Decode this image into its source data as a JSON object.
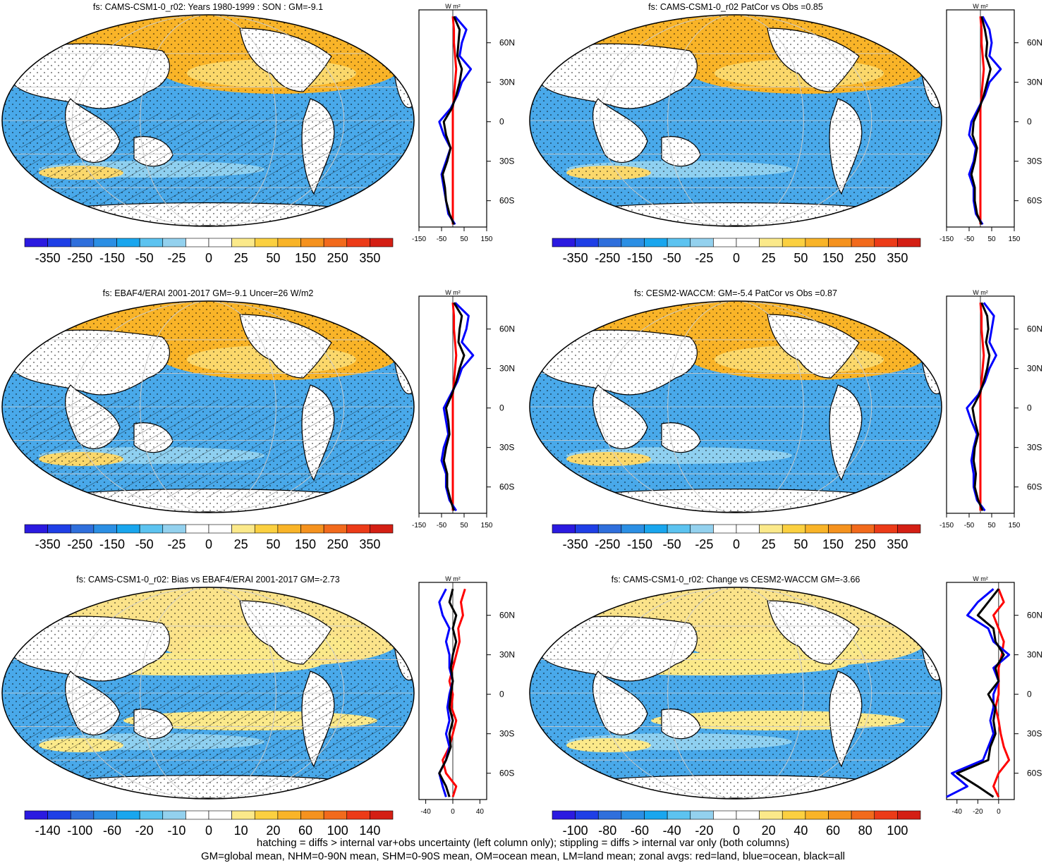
{
  "chart_data": [
    {
      "type": "heatmap",
      "title": "fs: CAMS-CSM1-0_r02: Years 1980-1999 : SON : GM=-9.1",
      "colorbar_labels": [
        "-350",
        "-250",
        "-150",
        "-50",
        "-25",
        "0",
        "25",
        "50",
        "150",
        "250",
        "350"
      ],
      "zonal_profile": {
        "unit": "W m²",
        "y_tick_labels": [
          "60N",
          "30N",
          "0",
          "30S",
          "60S"
        ],
        "y_ticks": [
          60,
          30,
          0,
          -30,
          -60
        ],
        "x_tick_labels": [
          "-150",
          "-50",
          "50",
          "150"
        ],
        "x_ticks": [
          -150,
          -50,
          50,
          150
        ],
        "xlim": [
          -150,
          150
        ],
        "ylim": [
          -80,
          85
        ],
        "lat": [
          80,
          70,
          60,
          50,
          40,
          30,
          20,
          10,
          0,
          -10,
          -20,
          -30,
          -40,
          -50,
          -60,
          -70,
          -78
        ],
        "series": [
          {
            "name": "land",
            "color": "#ff0000",
            "values": [
              0,
              5,
              5,
              10,
              15,
              10,
              5,
              0,
              0,
              0,
              0,
              0,
              0,
              0,
              0,
              0,
              0
            ]
          },
          {
            "name": "ocean",
            "color": "#0000ff",
            "values": [
              10,
              60,
              40,
              30,
              80,
              40,
              20,
              -10,
              -60,
              -40,
              -10,
              -30,
              -50,
              -40,
              -30,
              -20,
              10
            ]
          },
          {
            "name": "all",
            "color": "#000000",
            "values": [
              5,
              30,
              25,
              20,
              40,
              30,
              15,
              -5,
              -40,
              -30,
              -10,
              -25,
              -45,
              -35,
              -30,
              -15,
              5
            ]
          }
        ]
      }
    },
    {
      "type": "heatmap",
      "title": "fs: CAMS-CSM1-0_r02 PatCor vs Obs =0.85",
      "colorbar_labels": [
        "-350",
        "-250",
        "-150",
        "-50",
        "-25",
        "0",
        "25",
        "50",
        "150",
        "250",
        "350"
      ],
      "zonal_profile": {
        "unit": "W m²",
        "y_tick_labels": [
          "60N",
          "30N",
          "0",
          "30S",
          "60S"
        ],
        "y_ticks": [
          60,
          30,
          0,
          -30,
          -60
        ],
        "x_tick_labels": [
          "-150",
          "-50",
          "50",
          "150"
        ],
        "x_ticks": [
          -150,
          -50,
          50,
          150
        ],
        "xlim": [
          -150,
          150
        ],
        "ylim": [
          -80,
          85
        ],
        "lat": [
          80,
          70,
          60,
          50,
          40,
          30,
          20,
          10,
          0,
          -10,
          -20,
          -30,
          -40,
          -50,
          -60,
          -70,
          -78
        ],
        "series": [
          {
            "name": "land",
            "color": "#ff0000",
            "values": [
              0,
              5,
              5,
              10,
              15,
              10,
              5,
              0,
              0,
              0,
              0,
              0,
              0,
              0,
              0,
              0,
              0
            ]
          },
          {
            "name": "ocean",
            "color": "#0000ff",
            "values": [
              10,
              40,
              50,
              40,
              90,
              40,
              20,
              -10,
              -40,
              -50,
              -20,
              -30,
              -50,
              -30,
              -30,
              -20,
              10
            ]
          },
          {
            "name": "all",
            "color": "#000000",
            "values": [
              5,
              20,
              30,
              25,
              45,
              30,
              15,
              -5,
              -30,
              -35,
              -15,
              -25,
              -40,
              -25,
              -25,
              -15,
              5
            ]
          }
        ]
      }
    },
    {
      "type": "heatmap",
      "title": "fs: EBAF4/ERAI 2001-2017 GM=-9.1 Uncer=26 W/m2",
      "colorbar_labels": [
        "-350",
        "-250",
        "-150",
        "-50",
        "-25",
        "0",
        "25",
        "50",
        "150",
        "250",
        "350"
      ],
      "zonal_profile": {
        "unit": "W m²",
        "y_tick_labels": [
          "60N",
          "30N",
          "0",
          "30S",
          "60S"
        ],
        "y_ticks": [
          60,
          30,
          0,
          -30,
          -60
        ],
        "x_tick_labels": [
          "-150",
          "-50",
          "50",
          "150"
        ],
        "x_ticks": [
          -150,
          -50,
          50,
          150
        ],
        "xlim": [
          -150,
          150
        ],
        "ylim": [
          -80,
          85
        ],
        "lat": [
          80,
          70,
          60,
          50,
          40,
          30,
          20,
          10,
          0,
          -10,
          -20,
          -30,
          -40,
          -50,
          -60,
          -70,
          -78
        ],
        "series": [
          {
            "name": "land",
            "color": "#ff0000",
            "values": [
              0,
              5,
              5,
              10,
              15,
              10,
              5,
              0,
              0,
              0,
              0,
              0,
              0,
              0,
              0,
              0,
              0
            ]
          },
          {
            "name": "ocean",
            "color": "#0000ff",
            "values": [
              10,
              70,
              60,
              40,
              90,
              40,
              20,
              -10,
              -40,
              -30,
              -20,
              -40,
              -50,
              -30,
              -30,
              -15,
              15
            ]
          },
          {
            "name": "all",
            "color": "#000000",
            "values": [
              5,
              40,
              30,
              25,
              50,
              30,
              15,
              -5,
              -30,
              -20,
              -15,
              -30,
              -40,
              -25,
              -25,
              -10,
              5
            ]
          }
        ]
      }
    },
    {
      "type": "heatmap",
      "title": "fs: CESM2-WACCM: GM=-5.4 PatCor vs Obs =0.87",
      "colorbar_labels": [
        "-350",
        "-250",
        "-150",
        "-50",
        "-25",
        "0",
        "25",
        "50",
        "150",
        "250",
        "350"
      ],
      "zonal_profile": {
        "unit": "W m²",
        "y_tick_labels": [
          "60N",
          "30N",
          "0",
          "30S",
          "60S"
        ],
        "y_ticks": [
          60,
          30,
          0,
          -30,
          -60
        ],
        "x_tick_labels": [
          "-150",
          "-50",
          "50",
          "150"
        ],
        "x_ticks": [
          -150,
          -50,
          50,
          150
        ],
        "xlim": [
          -150,
          150
        ],
        "ylim": [
          -80,
          85
        ],
        "lat": [
          80,
          70,
          60,
          50,
          40,
          30,
          20,
          10,
          0,
          -10,
          -20,
          -30,
          -40,
          -50,
          -60,
          -70,
          -78
        ],
        "series": [
          {
            "name": "land",
            "color": "#ff0000",
            "values": [
              0,
              5,
              5,
              10,
              15,
              10,
              5,
              0,
              0,
              0,
              0,
              0,
              0,
              0,
              0,
              0,
              0
            ]
          },
          {
            "name": "ocean",
            "color": "#0000ff",
            "values": [
              15,
              60,
              50,
              40,
              70,
              40,
              20,
              -10,
              -60,
              -40,
              -15,
              -30,
              -40,
              -30,
              -30,
              -15,
              20
            ]
          },
          {
            "name": "all",
            "color": "#000000",
            "values": [
              5,
              30,
              35,
              25,
              40,
              30,
              15,
              -5,
              -35,
              -25,
              -10,
              -25,
              -30,
              -20,
              -25,
              -10,
              10
            ]
          }
        ]
      }
    },
    {
      "type": "heatmap",
      "title": "fs: CAMS-CSM1-0_r02: Bias vs EBAF4/ERAI 2001-2017  GM=-2.73",
      "colorbar_labels": [
        "-140",
        "-100",
        "-60",
        "-20",
        "-10",
        "0",
        "10",
        "20",
        "60",
        "100",
        "140"
      ],
      "zonal_profile": {
        "unit": "W m²",
        "y_tick_labels": [
          "60N",
          "30N",
          "0",
          "30S",
          "60S"
        ],
        "y_ticks": [
          60,
          30,
          0,
          -30,
          -60
        ],
        "x_tick_labels": [
          "-40",
          "0",
          "40"
        ],
        "x_ticks": [
          -40,
          0,
          40
        ],
        "xlim": [
          -50,
          50
        ],
        "ylim": [
          -80,
          85
        ],
        "lat": [
          80,
          70,
          60,
          50,
          40,
          30,
          20,
          10,
          0,
          -10,
          -20,
          -30,
          -40,
          -50,
          -60,
          -70,
          -78
        ],
        "series": [
          {
            "name": "land",
            "color": "#ff0000",
            "values": [
              18,
              12,
              15,
              8,
              10,
              5,
              0,
              -5,
              0,
              -2,
              5,
              0,
              -5,
              -15,
              -10,
              5,
              0
            ],
            "_note": ""
          },
          {
            "name": "ocean",
            "color": "#0000ff",
            "values": [
              -10,
              -20,
              -15,
              -5,
              -10,
              -5,
              -5,
              0,
              -5,
              -8,
              -5,
              -10,
              -5,
              -10,
              -20,
              -15,
              -10
            ]
          },
          {
            "name": "all",
            "color": "#000000",
            "values": [
              0,
              -5,
              5,
              0,
              5,
              0,
              -3,
              0,
              -3,
              -5,
              0,
              -5,
              -3,
              -10,
              -20,
              -10,
              -5
            ]
          }
        ]
      }
    },
    {
      "type": "heatmap",
      "title": "fs: CAMS-CSM1-0_r02: Change vs CESM2-WACCM GM=-3.66",
      "colorbar_labels": [
        "-100",
        "-80",
        "-60",
        "-40",
        "-20",
        "0",
        "20",
        "40",
        "60",
        "80",
        "100"
      ],
      "zonal_profile": {
        "unit": "W m²",
        "y_tick_labels": [
          "60N",
          "30N",
          "0",
          "30S",
          "60S"
        ],
        "y_ticks": [
          60,
          30,
          0,
          -30,
          -60
        ],
        "x_tick_labels": [
          "-40",
          "-20",
          "0"
        ],
        "x_ticks": [
          -40,
          -20,
          0
        ],
        "xlim": [
          -50,
          15
        ],
        "ylim": [
          -80,
          85
        ],
        "lat": [
          80,
          70,
          60,
          50,
          40,
          30,
          20,
          10,
          0,
          -10,
          -20,
          -30,
          -40,
          -50,
          -60,
          -70,
          -78
        ],
        "series": [
          {
            "name": "land",
            "color": "#ff0000",
            "values": [
              0,
              5,
              -5,
              0,
              5,
              3,
              0,
              0,
              0,
              -3,
              0,
              2,
              5,
              10,
              0,
              -5,
              0
            ]
          },
          {
            "name": "ocean",
            "color": "#0000ff",
            "values": [
              -5,
              -20,
              -30,
              -10,
              -5,
              10,
              -5,
              0,
              -5,
              -5,
              -8,
              -5,
              -10,
              -15,
              -45,
              -30,
              -50
            ]
          },
          {
            "name": "all",
            "color": "#000000",
            "values": [
              0,
              -10,
              -20,
              -5,
              -3,
              5,
              -3,
              0,
              -10,
              -3,
              -5,
              -3,
              -8,
              -10,
              -40,
              -20,
              -5
            ]
          }
        ]
      }
    }
  ],
  "colorbar_colors": [
    "#2b1ae0",
    "#1f3fe6",
    "#2f6fdc",
    "#2b8fe4",
    "#19a6ee",
    "#5cc3f0",
    "#93d1ee",
    "#ffffff",
    "#ffffff",
    "#fbe98a",
    "#fbd040",
    "#f9b428",
    "#f5921e",
    "#f26a1c",
    "#ec3b18",
    "#d41f14"
  ],
  "footnote_lines": [
    "hatching = diffs > internal var+obs uncertainty (left column only); stippling = diffs > internal var only (both columns)",
    "GM=global mean, NHM=0-90N mean, SHM=0-90S mean, OM=ocean mean, LM=land mean; zonal avgs: red=land, blue=ocean, black=all"
  ]
}
